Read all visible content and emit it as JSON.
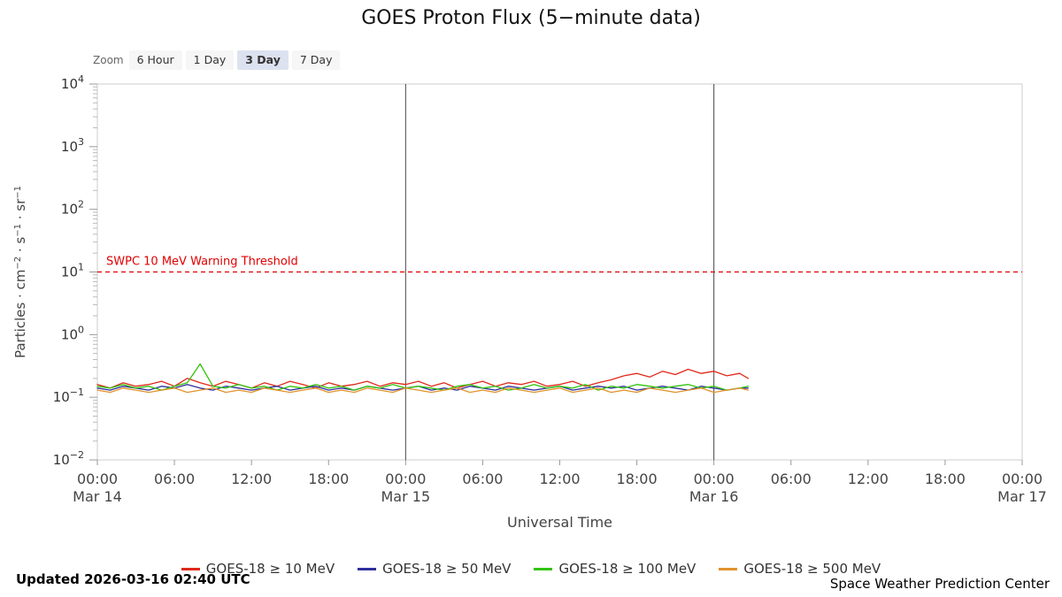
{
  "page": {
    "title": "GOES Proton Flux (5−minute data)"
  },
  "zoom": {
    "label": "Zoom",
    "buttons": [
      {
        "label": "6 Hour",
        "selected": false
      },
      {
        "label": "1 Day",
        "selected": false
      },
      {
        "label": "3 Day",
        "selected": true
      },
      {
        "label": "7 Day",
        "selected": false
      }
    ]
  },
  "footer": {
    "updated": "Updated 2026-03-16 02:40 UTC",
    "credit": "Space Weather Prediction Center"
  },
  "chart_data": {
    "type": "line",
    "title": "GOES Proton Flux (5−minute data)",
    "xlabel": "Universal Time",
    "ylabel": "Particles · cm^-2 · s^-1 · sr^-1",
    "ylabel_parts": [
      {
        "t": "Particles · cm"
      },
      {
        "sup": "−2"
      },
      {
        "t": " · s"
      },
      {
        "sup": "−1"
      },
      {
        "t": " · sr"
      },
      {
        "sup": "−1"
      }
    ],
    "y_scale": "log",
    "ylim": [
      0.01,
      10000
    ],
    "y_tick_exponents": [
      4,
      3,
      2,
      1,
      0,
      -1,
      -2
    ],
    "xlim_hours": [
      0,
      72
    ],
    "x_ticks": [
      {
        "hour": 0,
        "label": "00:00"
      },
      {
        "hour": 6,
        "label": "06:00"
      },
      {
        "hour": 12,
        "label": "12:00"
      },
      {
        "hour": 18,
        "label": "18:00"
      },
      {
        "hour": 24,
        "label": "00:00"
      },
      {
        "hour": 30,
        "label": "06:00"
      },
      {
        "hour": 36,
        "label": "12:00"
      },
      {
        "hour": 42,
        "label": "18:00"
      },
      {
        "hour": 48,
        "label": "00:00"
      },
      {
        "hour": 54,
        "label": "06:00"
      },
      {
        "hour": 60,
        "label": "12:00"
      },
      {
        "hour": 66,
        "label": "18:00"
      },
      {
        "hour": 72,
        "label": "00:00"
      }
    ],
    "x_date_labels": [
      {
        "hour": 0,
        "label": "Mar 14"
      },
      {
        "hour": 24,
        "label": "Mar 15"
      },
      {
        "hour": 48,
        "label": "Mar 16"
      },
      {
        "hour": 72,
        "label": "Mar 17"
      }
    ],
    "day_boundary_lines_hours": [
      24,
      48
    ],
    "threshold": {
      "value": 10,
      "label": "SWPC 10 MeV Warning Threshold",
      "color": "#e00000"
    },
    "grid": false,
    "legend_position": "bottom",
    "x_hours": [
      0,
      1,
      2,
      3,
      4,
      5,
      6,
      7,
      8,
      9,
      10,
      11,
      12,
      13,
      14,
      15,
      16,
      17,
      18,
      19,
      20,
      21,
      22,
      23,
      24,
      25,
      26,
      27,
      28,
      29,
      30,
      31,
      32,
      33,
      34,
      35,
      36,
      37,
      38,
      39,
      40,
      41,
      42,
      43,
      44,
      45,
      46,
      47,
      48,
      49,
      50,
      50.67
    ],
    "series": [
      {
        "name": "GOES-18 ≥ 10 MeV",
        "color": "#e0291a",
        "values": [
          0.16,
          0.14,
          0.17,
          0.15,
          0.16,
          0.18,
          0.15,
          0.2,
          0.17,
          0.15,
          0.18,
          0.16,
          0.14,
          0.17,
          0.15,
          0.18,
          0.16,
          0.14,
          0.17,
          0.15,
          0.16,
          0.18,
          0.15,
          0.17,
          0.16,
          0.18,
          0.15,
          0.17,
          0.14,
          0.16,
          0.18,
          0.15,
          0.17,
          0.16,
          0.18,
          0.15,
          0.16,
          0.18,
          0.15,
          0.17,
          0.19,
          0.22,
          0.24,
          0.21,
          0.26,
          0.23,
          0.28,
          0.24,
          0.26,
          0.22,
          0.24,
          0.2
        ]
      },
      {
        "name": "GOES-18 ≥ 50 MeV",
        "color": "#2f2f9e",
        "values": [
          0.14,
          0.13,
          0.15,
          0.14,
          0.13,
          0.15,
          0.14,
          0.16,
          0.14,
          0.13,
          0.15,
          0.14,
          0.13,
          0.14,
          0.15,
          0.13,
          0.14,
          0.15,
          0.13,
          0.14,
          0.13,
          0.15,
          0.14,
          0.13,
          0.14,
          0.15,
          0.13,
          0.14,
          0.13,
          0.15,
          0.14,
          0.13,
          0.15,
          0.14,
          0.13,
          0.14,
          0.15,
          0.13,
          0.14,
          0.15,
          0.14,
          0.15,
          0.13,
          0.14,
          0.15,
          0.14,
          0.13,
          0.15,
          0.14,
          0.13,
          0.14,
          0.14
        ]
      },
      {
        "name": "GOES-18 ≥ 100 MeV",
        "color": "#33c30e",
        "values": [
          0.15,
          0.14,
          0.16,
          0.14,
          0.15,
          0.13,
          0.15,
          0.17,
          0.34,
          0.15,
          0.14,
          0.16,
          0.14,
          0.15,
          0.13,
          0.15,
          0.14,
          0.16,
          0.14,
          0.15,
          0.13,
          0.15,
          0.14,
          0.16,
          0.14,
          0.15,
          0.14,
          0.13,
          0.15,
          0.16,
          0.14,
          0.15,
          0.13,
          0.14,
          0.16,
          0.14,
          0.15,
          0.14,
          0.16,
          0.13,
          0.15,
          0.14,
          0.16,
          0.15,
          0.14,
          0.15,
          0.16,
          0.14,
          0.15,
          0.13,
          0.14,
          0.15
        ]
      },
      {
        "name": "GOES-18 ≥ 500 MeV",
        "color": "#e0932c",
        "values": [
          0.13,
          0.12,
          0.14,
          0.13,
          0.12,
          0.13,
          0.14,
          0.12,
          0.13,
          0.14,
          0.12,
          0.13,
          0.12,
          0.14,
          0.13,
          0.12,
          0.13,
          0.14,
          0.12,
          0.13,
          0.12,
          0.14,
          0.13,
          0.12,
          0.14,
          0.13,
          0.12,
          0.13,
          0.14,
          0.12,
          0.13,
          0.12,
          0.14,
          0.13,
          0.12,
          0.13,
          0.14,
          0.12,
          0.13,
          0.14,
          0.12,
          0.13,
          0.12,
          0.14,
          0.13,
          0.12,
          0.13,
          0.14,
          0.12,
          0.13,
          0.14,
          0.13
        ]
      }
    ]
  }
}
